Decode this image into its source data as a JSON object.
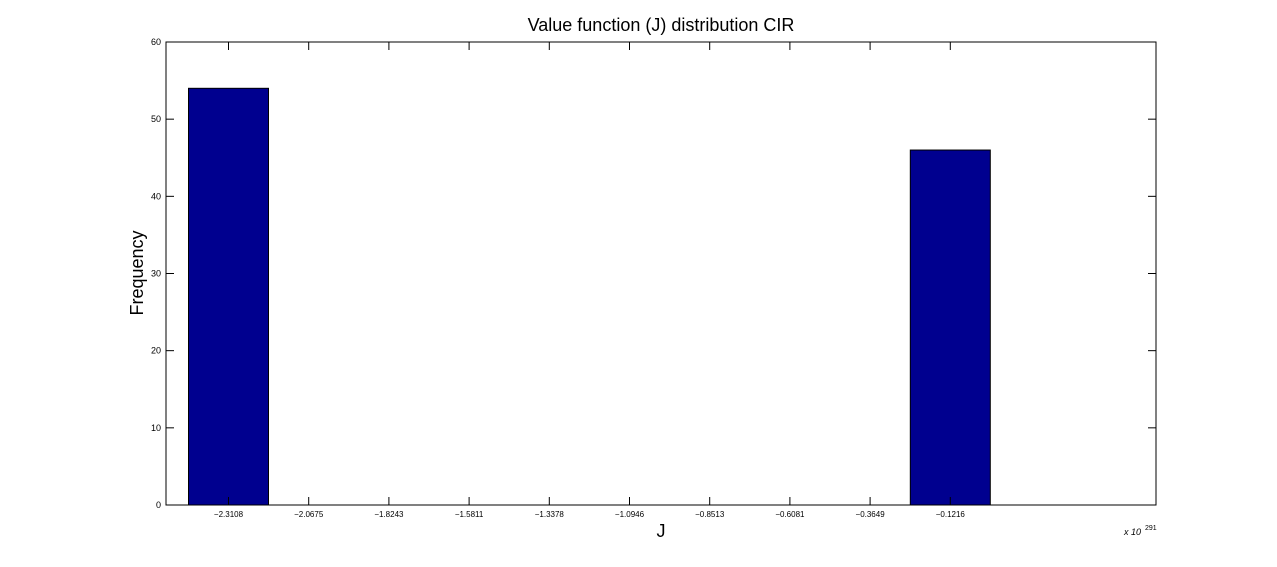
{
  "chart_data": {
    "type": "bar",
    "title": "Value function (J) distribution CIR",
    "xlabel": "J",
    "ylabel": "Frequency",
    "x_exponent_base": "x 10",
    "x_exponent_power": "291",
    "categories": [
      "−2.3108",
      "−2.0675",
      "−1.8243",
      "−1.5811",
      "−1.3378",
      "−1.0946",
      "−0.8513",
      "−0.6081",
      "−0.3649",
      "−0.1216"
    ],
    "values": [
      54,
      0,
      0,
      0,
      0,
      0,
      0,
      0,
      0,
      46
    ],
    "ylim": [
      0,
      60
    ],
    "yticks": [
      0,
      10,
      20,
      30,
      40,
      50,
      60
    ],
    "grid": false,
    "legend": "none",
    "colors": {
      "bar_fill": "#00008f",
      "bar_edge": "#000000",
      "axes": "#000000",
      "background": "#ffffff"
    }
  }
}
